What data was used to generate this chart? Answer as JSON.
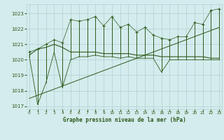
{
  "title": "Graphe pression niveau de la mer (hPa)",
  "bg_color": "#d4eced",
  "grid_color": "#b0d0d2",
  "line_color": "#2d5a1b",
  "ylim": [
    1016.8,
    1023.6
  ],
  "xlim": [
    -0.3,
    23.3
  ],
  "yticks": [
    1017,
    1018,
    1019,
    1020,
    1021,
    1022,
    1023
  ],
  "xticks": [
    0,
    1,
    2,
    3,
    4,
    5,
    6,
    7,
    8,
    9,
    10,
    11,
    12,
    13,
    14,
    15,
    16,
    17,
    18,
    19,
    20,
    21,
    22,
    23
  ],
  "hours": [
    0,
    1,
    2,
    3,
    4,
    5,
    6,
    7,
    8,
    9,
    10,
    11,
    12,
    13,
    14,
    15,
    16,
    17,
    18,
    19,
    20,
    21,
    22,
    23
  ],
  "pressure_max": [
    1020.5,
    1020.7,
    1021.0,
    1021.3,
    1021.1,
    1022.6,
    1022.5,
    1022.6,
    1022.8,
    1022.2,
    1022.8,
    1022.1,
    1022.3,
    1021.8,
    1022.1,
    1021.6,
    1021.4,
    1021.3,
    1021.5,
    1021.5,
    1022.4,
    1022.3,
    1023.2,
    1023.3
  ],
  "pressure_min": [
    1020.2,
    1017.1,
    1018.5,
    1020.5,
    1018.2,
    1020.0,
    1020.2,
    1020.2,
    1020.3,
    1020.2,
    1020.2,
    1020.1,
    1020.2,
    1020.1,
    1020.1,
    1020.1,
    1019.2,
    1020.0,
    1020.0,
    1020.0,
    1020.0,
    1020.0,
    1020.0,
    1020.0
  ],
  "pressure_cur": [
    1020.3,
    1020.7,
    1020.8,
    1021.0,
    1020.8,
    1020.5,
    1020.5,
    1020.5,
    1020.5,
    1020.4,
    1020.4,
    1020.4,
    1020.4,
    1020.3,
    1020.3,
    1020.3,
    1020.2,
    1020.2,
    1020.2,
    1020.2,
    1020.2,
    1020.2,
    1020.1,
    1020.1
  ],
  "trend_x": [
    0,
    23
  ],
  "trend_y": [
    1017.5,
    1022.1
  ]
}
